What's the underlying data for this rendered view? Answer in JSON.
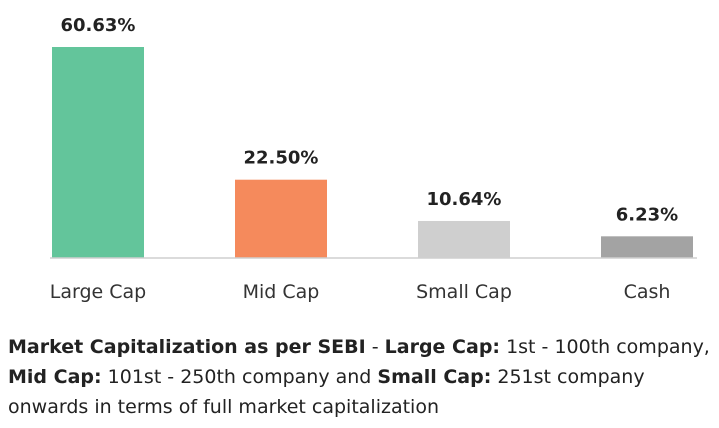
{
  "chart_data": {
    "type": "bar",
    "categories": [
      "Large Cap",
      "Mid Cap",
      "Small Cap",
      "Cash"
    ],
    "values": [
      60.63,
      22.5,
      10.64,
      6.23
    ],
    "value_labels": [
      "60.63%",
      "22.50%",
      "10.64%",
      "6.23%"
    ],
    "colors": [
      "#63c59b",
      "#f58a5c",
      "#cfcfcf",
      "#a3a3a3"
    ],
    "ylim": [
      0,
      60.63
    ],
    "grid": false,
    "legend": "none"
  },
  "caption": {
    "part1_bold": "Market Capitalization as per SEBI",
    "part2": " - ",
    "part3_bold": "Large Cap:",
    "part4": " 1st - 100th company, ",
    "part5_bold": "Mid Cap:",
    "part6": " 101st - 250th company and ",
    "part7_bold": "Small Cap:",
    "part8": " 251st company onwards in terms of full market capitalization"
  }
}
